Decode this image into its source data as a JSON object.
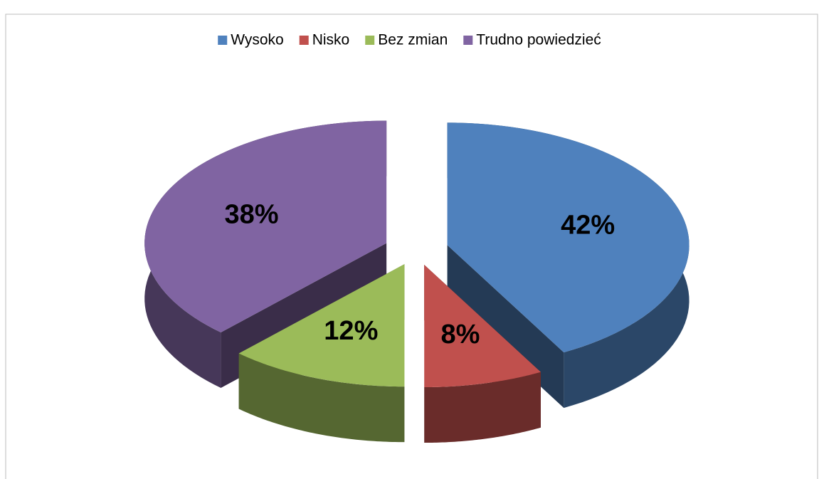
{
  "chart_data": {
    "type": "pie3d",
    "categories": [
      "Wysoko",
      "Nisko",
      "Bez zmian",
      "Trudno powiedzieć"
    ],
    "values": [
      42,
      8,
      12,
      38
    ],
    "value_labels": [
      "42%",
      "8%",
      "12%",
      "38%"
    ],
    "colors": [
      "#4f81bd",
      "#c0504d",
      "#9bbb59",
      "#8064a2"
    ],
    "legend": "top"
  }
}
